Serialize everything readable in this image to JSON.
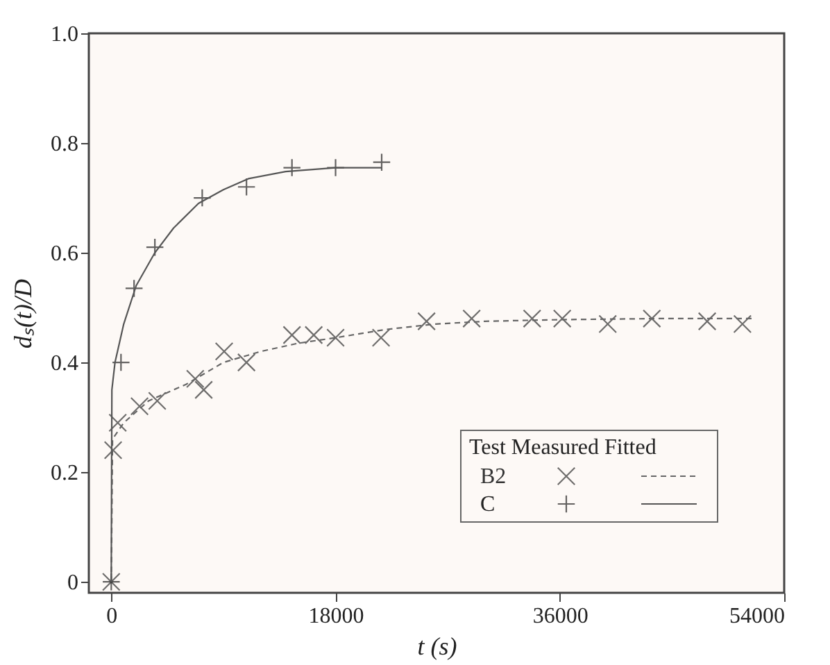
{
  "chart_data": {
    "type": "scatter",
    "xlabel": "t (s)",
    "ylabel": "dₛ(t)/D",
    "legend_title": "Test Measured Fitted",
    "legend": "bottom right",
    "grid": false,
    "xlim": [
      -1800,
      54000
    ],
    "xticks": [
      0,
      18000,
      36000,
      54000
    ],
    "ylim": [
      -0.02,
      1.0
    ],
    "yticks": [
      {
        "value": 0,
        "label": "0"
      },
      0.2,
      0.4,
      0.6,
      0.8,
      {
        "value": 1,
        "label": "1.0"
      }
    ],
    "series": [
      {
        "name": "B2",
        "marker": "cross",
        "color": "#333333",
        "x": [
          0,
          150,
          520,
          2270,
          3690,
          6740,
          7420,
          9060,
          10850,
          14500,
          16250,
          18000,
          21650,
          25300,
          28920,
          33770,
          36190,
          39840,
          43380,
          47820,
          50650
        ],
        "values": [
          0,
          0.24,
          0.29,
          0.32,
          0.33,
          0.37,
          0.35,
          0.42,
          0.4,
          0.45,
          0.45,
          0.445,
          0.445,
          0.475,
          0.48,
          0.48,
          0.48,
          0.47,
          0.48,
          0.475,
          0.47
        ]
      },
      {
        "name": "C",
        "marker": "plus",
        "color": "#222222",
        "x": [
          0,
          780,
          1830,
          3500,
          7300,
          10850,
          14500,
          18000,
          21700
        ],
        "values": [
          0,
          0.4,
          0.535,
          0.61,
          0.7,
          0.72,
          0.755,
          0.755,
          0.765
        ]
      },
      {
        "type": "line",
        "line_style": "dashed",
        "color": "#666666",
        "x": [
          0,
          100,
          1000,
          3000,
          6000,
          9000,
          12000,
          15000,
          18000,
          22000,
          26000,
          30000,
          36000,
          44000,
          51400
        ],
        "values": [
          0,
          0.26,
          0.29,
          0.33,
          0.36,
          0.4,
          0.42,
          0.435,
          0.445,
          0.46,
          0.47,
          0.475,
          0.478,
          0.48,
          0.48
        ]
      },
      {
        "type": "line",
        "line_style": "solid",
        "color": "#555555",
        "x": [
          0,
          50,
          300,
          1000,
          2000,
          3500,
          5000,
          7000,
          9000,
          11000,
          14000,
          18000,
          21700
        ],
        "values": [
          0,
          0.35,
          0.4,
          0.47,
          0.54,
          0.6,
          0.645,
          0.69,
          0.715,
          0.735,
          0.748,
          0.755,
          0.755
        ]
      }
    ]
  }
}
